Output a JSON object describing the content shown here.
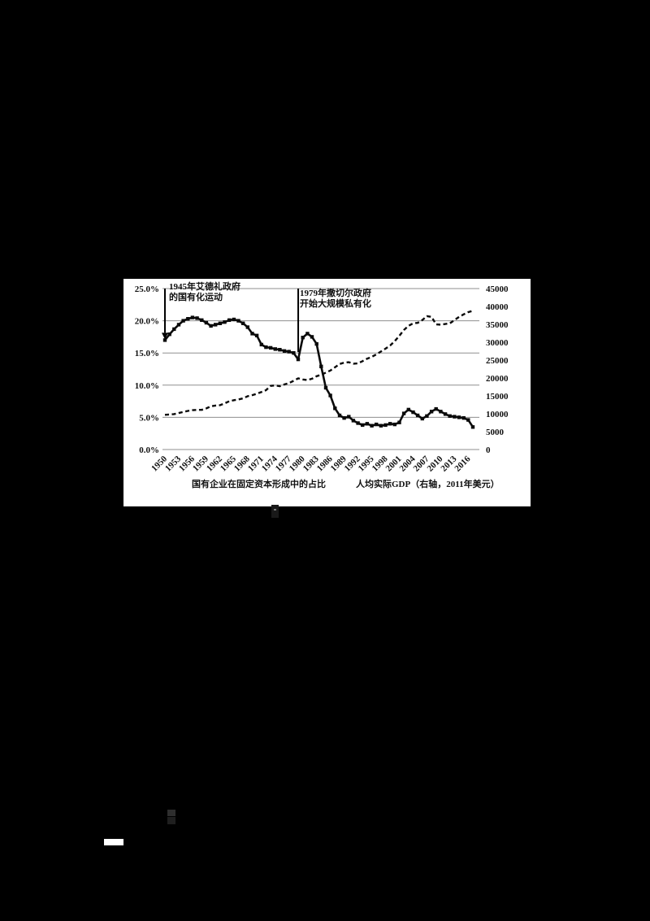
{
  "page": {
    "background_color": "#000000",
    "panel_color": "#ffffff"
  },
  "chart_data": {
    "type": "line",
    "title": "",
    "grid": "horizontal",
    "colors": {
      "line": "#0a0a0a",
      "grid": "#8f8f8f",
      "panel": "#ffffff",
      "text": "#111111"
    },
    "years": [
      1950,
      1951,
      1952,
      1953,
      1954,
      1955,
      1956,
      1957,
      1958,
      1959,
      1960,
      1961,
      1962,
      1963,
      1964,
      1965,
      1966,
      1967,
      1968,
      1969,
      1970,
      1971,
      1972,
      1973,
      1974,
      1975,
      1976,
      1977,
      1978,
      1979,
      1980,
      1981,
      1982,
      1983,
      1984,
      1985,
      1986,
      1987,
      1988,
      1989,
      1990,
      1991,
      1992,
      1993,
      1994,
      1995,
      1996,
      1997,
      1998,
      1999,
      2000,
      2001,
      2002,
      2003,
      2004,
      2005,
      2006,
      2007,
      2008,
      2009,
      2010,
      2011,
      2012,
      2013,
      2014,
      2015,
      2016,
      2017
    ],
    "x_tick_labels": [
      "1950",
      "1953",
      "1956",
      "1959",
      "1962",
      "1965",
      "1968",
      "1971",
      "1974",
      "1977",
      "1980",
      "1983",
      "1986",
      "1989",
      "1992",
      "1995",
      "1998",
      "2001",
      "2004",
      "2007",
      "2010",
      "2013",
      "2016"
    ],
    "left_axis": {
      "max": 25,
      "tick_values": [
        0,
        5,
        10,
        15,
        20,
        25
      ],
      "tick_labels": [
        "0.0%",
        "5.0%",
        "10.0%",
        "15.0%",
        "20.0%",
        "25.0%"
      ]
    },
    "right_axis": {
      "max": 45000,
      "tick_values": [
        0,
        5000,
        10000,
        15000,
        20000,
        25000,
        30000,
        35000,
        40000,
        45000
      ],
      "tick_labels": [
        "0",
        "5000",
        "10000",
        "15000",
        "20000",
        "25000",
        "30000",
        "35000",
        "40000",
        "45000"
      ]
    },
    "series": [
      {
        "name": "国有企业在固定资本形成中的占比",
        "axis": "left",
        "style": "solid-square-markers",
        "values": [
          17.0,
          17.9,
          18.7,
          19.4,
          20.0,
          20.3,
          20.5,
          20.4,
          20.1,
          19.7,
          19.2,
          19.4,
          19.6,
          19.8,
          20.1,
          20.2,
          20.0,
          19.6,
          19.0,
          18.0,
          17.7,
          16.3,
          15.9,
          15.8,
          15.6,
          15.5,
          15.3,
          15.2,
          15.0,
          14.0,
          17.4,
          18.0,
          17.5,
          16.4,
          12.9,
          9.6,
          8.4,
          6.4,
          5.3,
          4.9,
          5.1,
          4.5,
          4.1,
          3.8,
          4.0,
          3.7,
          3.9,
          3.7,
          3.8,
          4.0,
          3.9,
          4.2,
          5.6,
          6.2,
          5.8,
          5.3,
          4.8,
          5.2,
          5.9,
          6.3,
          5.9,
          5.5,
          5.2,
          5.1,
          5.0,
          4.9,
          4.6,
          3.5
        ]
      },
      {
        "name": "人均实际GDP（右轴，2011年美元）",
        "axis": "right",
        "style": "dashed",
        "values": [
          9700,
          9800,
          9900,
          10200,
          10500,
          10800,
          11000,
          11100,
          11100,
          11500,
          12100,
          12300,
          12400,
          12900,
          13500,
          13800,
          14000,
          14300,
          14900,
          15200,
          15600,
          16100,
          16600,
          17800,
          17900,
          17700,
          18200,
          18600,
          19200,
          19900,
          19600,
          19400,
          19800,
          20500,
          20900,
          21500,
          22100,
          23000,
          23900,
          24300,
          24400,
          24000,
          24100,
          24700,
          25400,
          25900,
          26600,
          27400,
          28200,
          29100,
          30300,
          31800,
          33400,
          34600,
          35300,
          35400,
          36200,
          37300,
          37100,
          35000,
          34900,
          35100,
          35300,
          36200,
          37100,
          37800,
          38400,
          38800
        ]
      }
    ],
    "annotations": [
      {
        "line1": "1945年艾德礼政府",
        "line2": "的国有化运动",
        "year": 1950,
        "arrow": true
      },
      {
        "line1": "1979年撒切尔政府",
        "line2": "开始大规模私有化",
        "year": 1979,
        "arrow": false
      }
    ],
    "legend": [
      "国有企业在固定资本形成中的占比",
      "人均实际GDP（右轴，2011年美元）"
    ]
  }
}
